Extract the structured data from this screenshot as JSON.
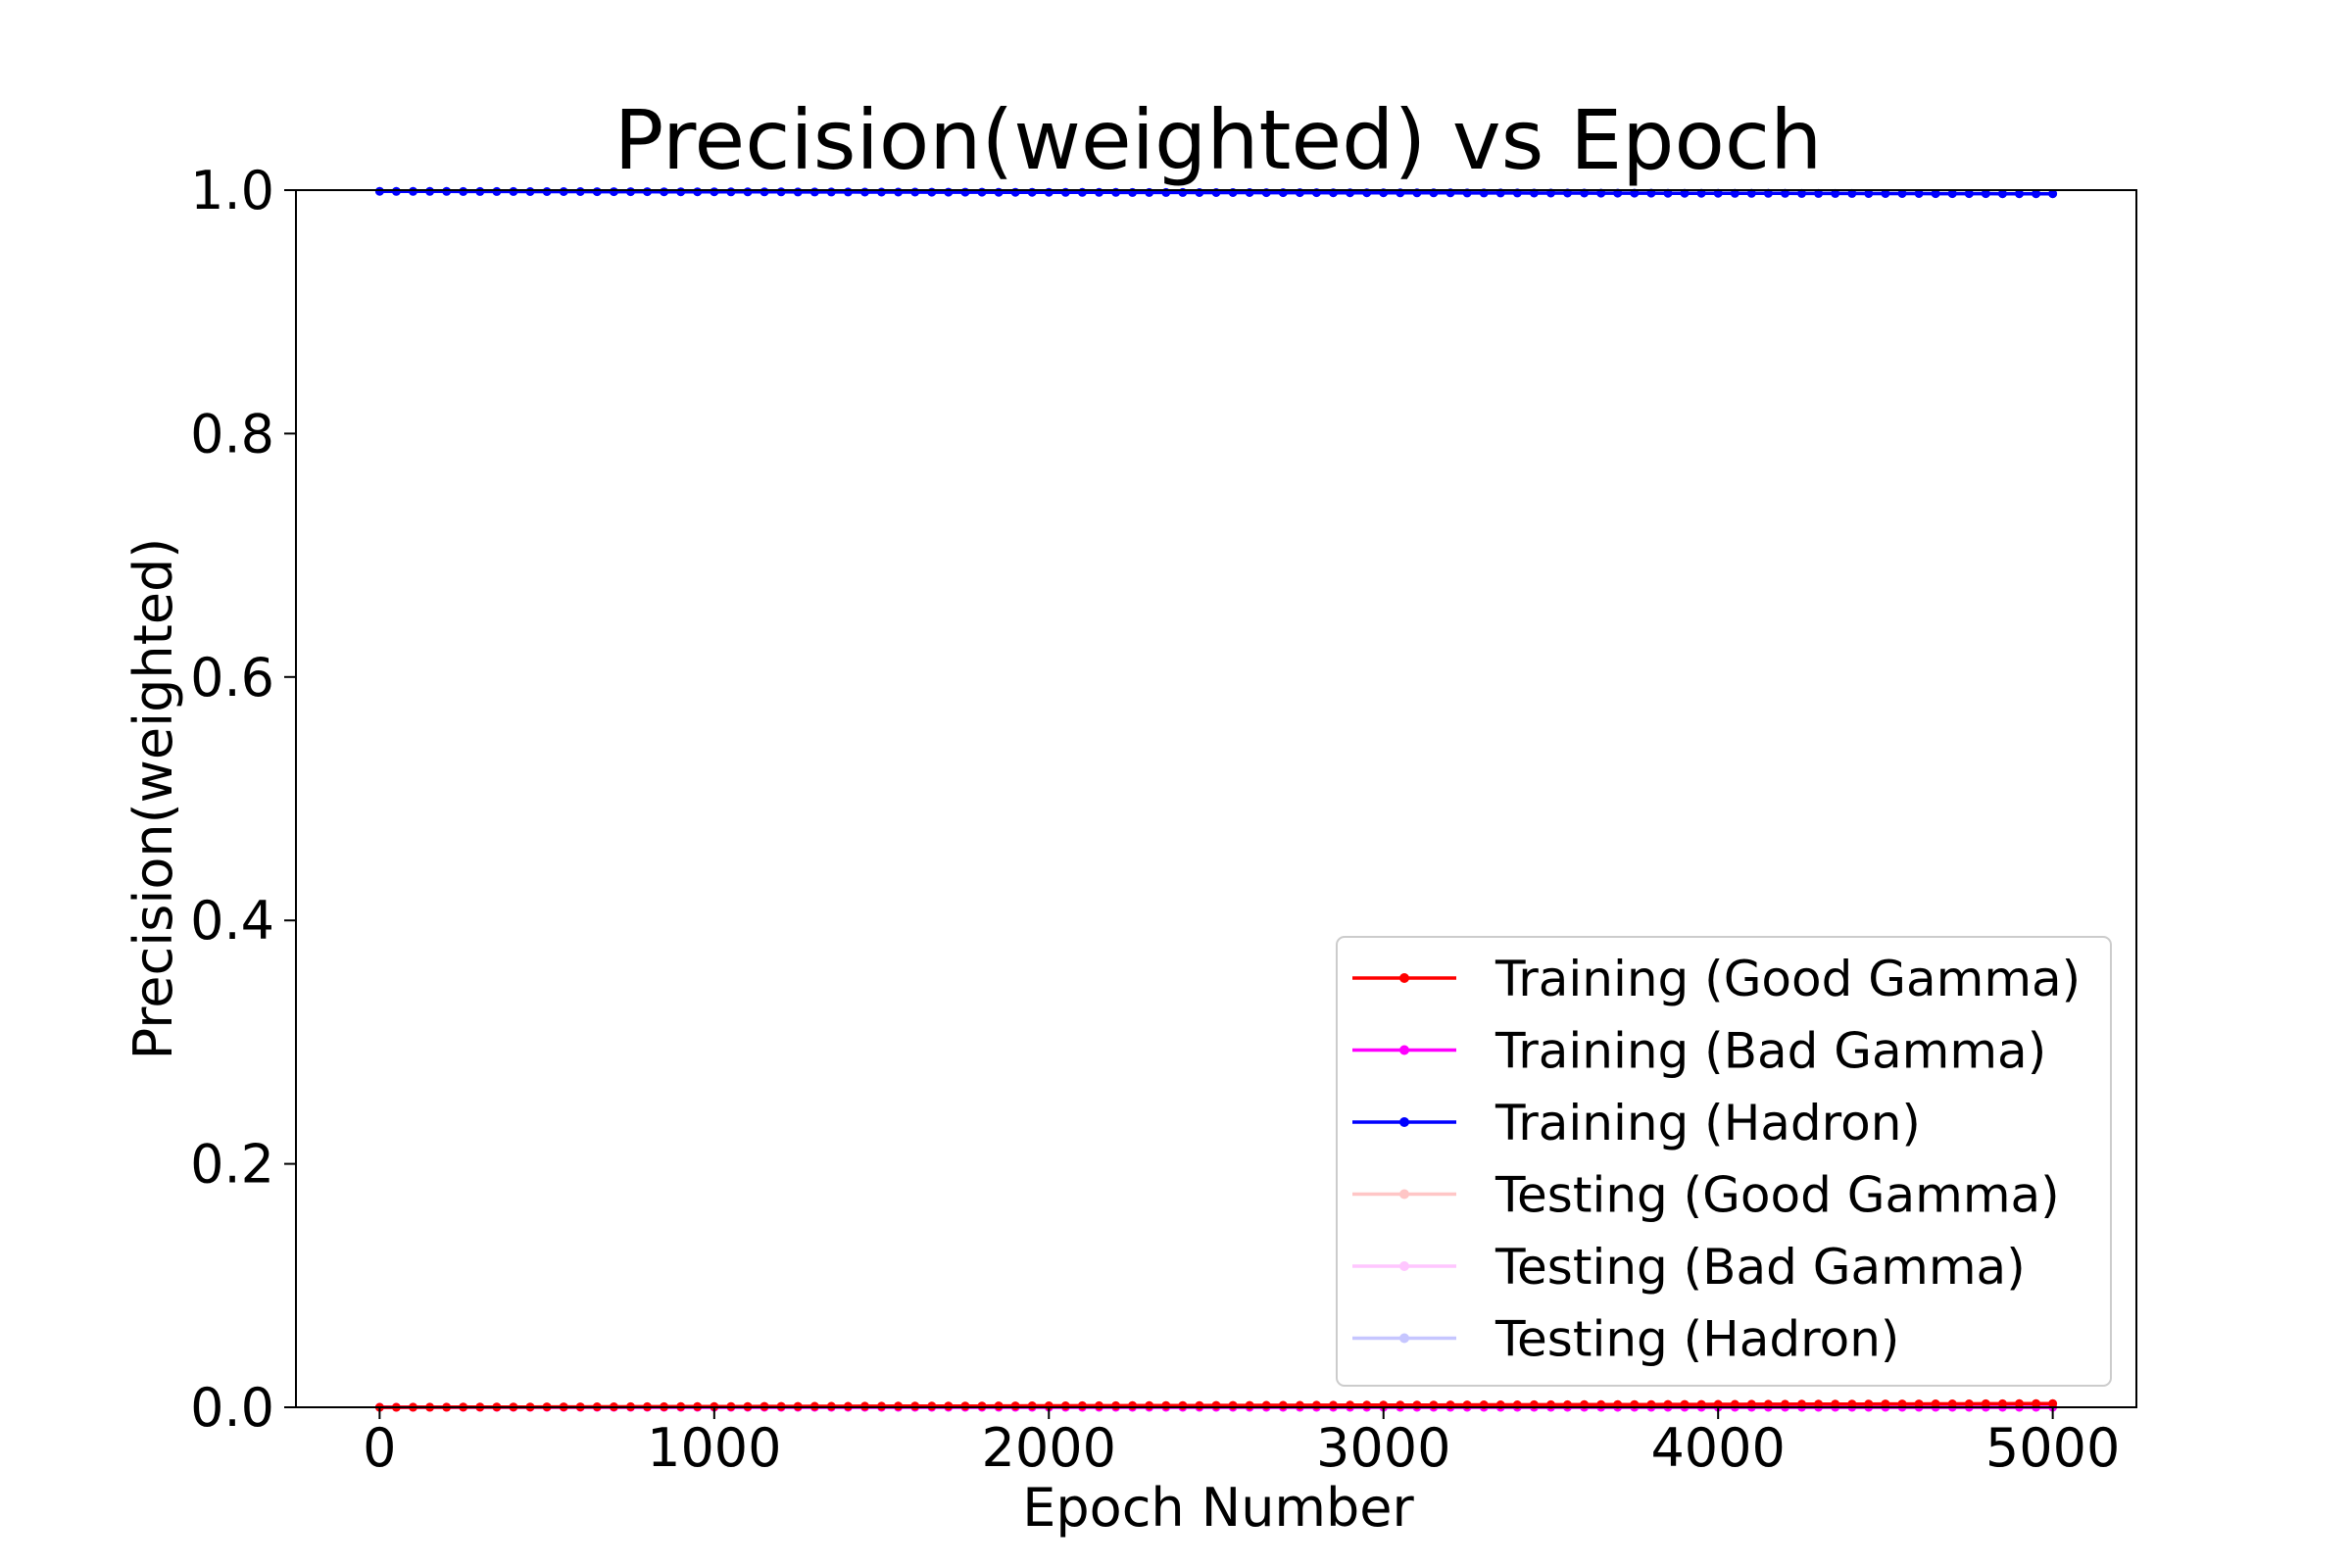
{
  "chart_data": {
    "type": "line",
    "title": "Precision(weighted) vs Epoch",
    "xlabel": "Epoch Number",
    "ylabel": "Precision(weighted)",
    "xlim": [
      -250,
      5250
    ],
    "ylim": [
      0.0,
      1.0
    ],
    "xticks": [
      0,
      1000,
      2000,
      3000,
      4000,
      5000
    ],
    "yticks": [
      0.0,
      0.2,
      0.4,
      0.6,
      0.8,
      1.0
    ],
    "xtick_labels": [
      "0",
      "1000",
      "2000",
      "3000",
      "4000",
      "5000"
    ],
    "ytick_labels": [
      "0.0",
      "0.2",
      "0.4",
      "0.6",
      "0.8",
      "1.0"
    ],
    "grid": false,
    "legend_position": "lower-right",
    "x": {
      "start": 0,
      "end": 5000,
      "step": 50
    },
    "series": [
      {
        "name": "Training (Good Gamma)",
        "color": "#ff0000",
        "opacity": 1.0,
        "value_start": 0.0,
        "value_end": 0.003
      },
      {
        "name": "Training (Bad Gamma)",
        "color": "#ff00ff",
        "opacity": 1.0,
        "value_start": 0.0,
        "value_end": 0.0
      },
      {
        "name": "Training (Hadron)",
        "color": "#0000ff",
        "opacity": 1.0,
        "value_start": 0.999,
        "value_end": 0.997
      },
      {
        "name": "Testing (Good Gamma)",
        "color": "#ff0000",
        "opacity": 0.22,
        "value_start": 0.0,
        "value_end": 0.003
      },
      {
        "name": "Testing (Bad Gamma)",
        "color": "#ff00ff",
        "opacity": 0.22,
        "value_start": 0.0,
        "value_end": 0.0
      },
      {
        "name": "Testing (Hadron)",
        "color": "#0000ff",
        "opacity": 0.22,
        "value_start": 0.999,
        "value_end": 0.997
      }
    ]
  }
}
